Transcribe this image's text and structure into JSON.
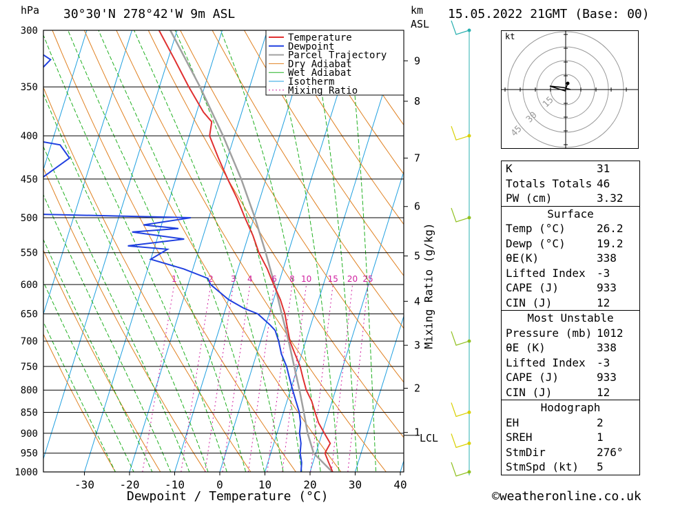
{
  "header": {
    "pressure_unit": "hPa",
    "location": "30°30'N 278°42'W 9m ASL",
    "km_label": "km",
    "asl_label": "ASL",
    "datetime": "15.05.2022 21GMT (Base: 00)"
  },
  "chart_data": {
    "type": "line",
    "xlabel": "Dewpoint / Temperature (°C)",
    "ylabel_right": "Mixing Ratio (g/kg)",
    "x_ticks": [
      -30,
      -20,
      -10,
      0,
      10,
      20,
      30,
      40
    ],
    "xlim": [
      -40,
      40
    ],
    "pressure_ticks": [
      300,
      350,
      400,
      450,
      500,
      550,
      600,
      650,
      700,
      750,
      800,
      850,
      900,
      950,
      1000
    ],
    "ylim": [
      1000,
      300
    ],
    "km_ticks": [
      {
        "label": "9",
        "p": 326
      },
      {
        "label": "8",
        "p": 364
      },
      {
        "label": "7",
        "p": 425
      },
      {
        "label": "6",
        "p": 485
      },
      {
        "label": "5",
        "p": 555
      },
      {
        "label": "4",
        "p": 628
      },
      {
        "label": "3",
        "p": 708
      },
      {
        "label": "2",
        "p": 796
      },
      {
        "label": "1",
        "p": 898
      }
    ],
    "lcl_label": "LCL",
    "lcl_pressure": 905,
    "mixing_ratio_labels": [
      "1",
      "2",
      "3",
      "4",
      "6",
      "8",
      "10",
      "15",
      "20",
      "25"
    ],
    "legend": [
      "Temperature",
      "Dewpoint",
      "Parcel Trajectory",
      "Dry Adiabat",
      "Wet Adiabat",
      "Isotherm",
      "Mixing Ratio"
    ],
    "colors": {
      "temperature": "#e03030",
      "dewpoint": "#2040e0",
      "parcel": "#a0a0a0",
      "dry_adiabat": "#e08020",
      "wet_adiabat": "#20b020",
      "isotherm": "#20a0e0",
      "mixing_ratio": "#d020a0"
    },
    "series": [
      {
        "name": "Temperature",
        "p": [
          1012,
          1000,
          975,
          950,
          925,
          900,
          875,
          850,
          825,
          800,
          775,
          750,
          725,
          700,
          675,
          650,
          625,
          600,
          590,
          575,
          550,
          525,
          500,
          475,
          450,
          425,
          400,
          385,
          375,
          350,
          325,
          300
        ],
        "t": [
          26.2,
          25.0,
          23.5,
          22.0,
          22.5,
          20.5,
          18.5,
          17.0,
          15.5,
          13.5,
          12.0,
          10.5,
          8.5,
          6.5,
          5.0,
          3.5,
          1.5,
          -1.0,
          -2.0,
          -3.5,
          -6.5,
          -9.0,
          -12.0,
          -15.0,
          -18.5,
          -22.0,
          -25.5,
          -26.0,
          -28.5,
          -33.5,
          -38.5,
          -44.0
        ]
      },
      {
        "name": "Dewpoint",
        "p": [
          1012,
          1000,
          975,
          950,
          925,
          900,
          875,
          850,
          825,
          800,
          775,
          750,
          725,
          700,
          680,
          670,
          650,
          640,
          625,
          600,
          590,
          575,
          560,
          545,
          540,
          530,
          520,
          515,
          510,
          500,
          495,
          450,
          425,
          410,
          400,
          390,
          375,
          350,
          325,
          310,
          300
        ],
        "t": [
          19.2,
          18.0,
          17.5,
          16.5,
          16.0,
          15.0,
          14.5,
          13.5,
          12.0,
          10.5,
          9.0,
          7.5,
          5.5,
          4.0,
          2.5,
          1.0,
          -2.5,
          -6.0,
          -10.0,
          -15.0,
          -16.0,
          -22.0,
          -30.0,
          -27.0,
          -36.0,
          -24.0,
          -36.0,
          -26.0,
          -34.0,
          -24.0,
          -60.0,
          -60.0,
          -55.0,
          -58.0,
          -70.0,
          -66.0,
          -69.0,
          -70.0,
          -66.0,
          -73.0,
          -73.0
        ]
      },
      {
        "name": "Parcel Trajectory",
        "p": [
          1012,
          950,
          900,
          850,
          800,
          750,
          700,
          650,
          600,
          550,
          500,
          450,
          400,
          350,
          300
        ],
        "t": [
          26.2,
          19.5,
          16.8,
          14.5,
          12.0,
          9.2,
          6.2,
          2.8,
          -0.8,
          -5.0,
          -9.8,
          -15.5,
          -22.5,
          -31.0,
          -41.5
        ]
      }
    ]
  },
  "hodograph": {
    "unit": "kt",
    "rings": [
      "15",
      "30",
      "45"
    ]
  },
  "indices": {
    "k_label": "K",
    "k": "31",
    "tt_label": "Totals Totals",
    "tt": "46",
    "pw_label": "PW (cm)",
    "pw": "3.32"
  },
  "surface": {
    "title": "Surface",
    "temp_label": "Temp (°C)",
    "temp": "26.2",
    "dewp_label": "Dewp (°C)",
    "dewp": "19.2",
    "theta_label": "θE(K)",
    "theta": "338",
    "li_label": "Lifted Index",
    "li": "-3",
    "cape_label": "CAPE (J)",
    "cape": "933",
    "cin_label": "CIN (J)",
    "cin": "12"
  },
  "most_unstable": {
    "title": "Most Unstable",
    "pres_label": "Pressure (mb)",
    "pres": "1012",
    "theta_label": "θE (K)",
    "theta": "338",
    "li_label": "Lifted Index",
    "li": "-3",
    "cape_label": "CAPE (J)",
    "cape": "933",
    "cin_label": "CIN (J)",
    "cin": "12"
  },
  "hodograph_stats": {
    "title": "Hodograph",
    "eh_label": "EH",
    "eh": "2",
    "sreh_label": "SREH",
    "sreh": "1",
    "stmdir_label": "StmDir",
    "stmdir": "276°",
    "stmspd_label": "StmSpd (kt)",
    "stmspd": "5"
  },
  "copyright": "©weatheronline.co.uk"
}
